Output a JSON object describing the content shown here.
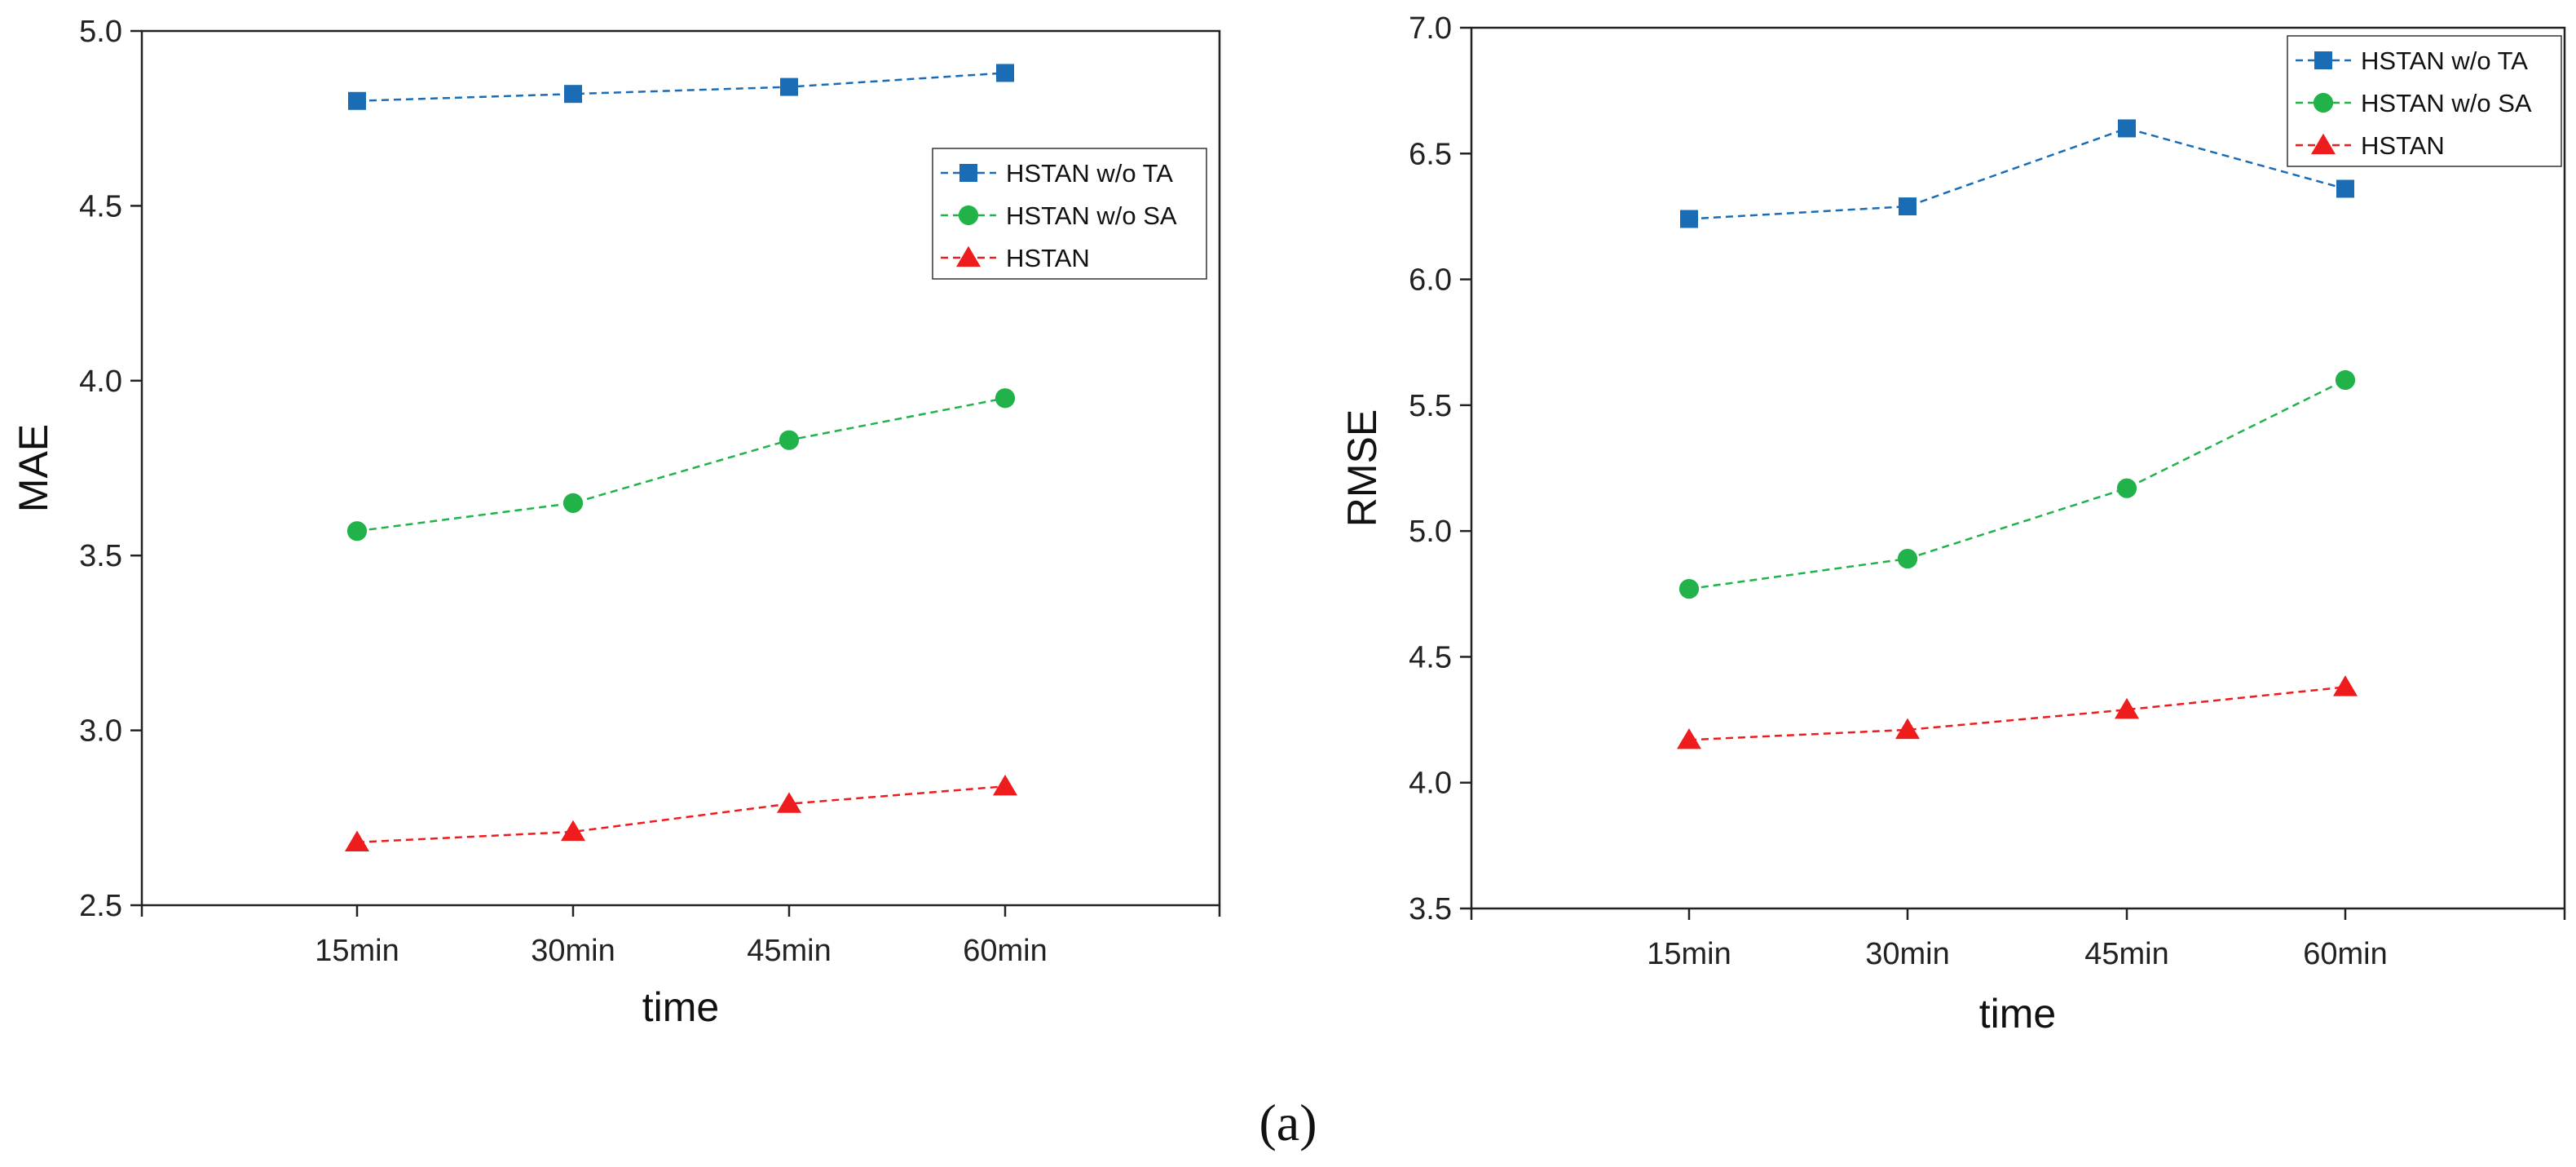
{
  "caption": "(a)",
  "chart_data": [
    {
      "type": "line",
      "title": "",
      "xlabel": "time",
      "ylabel": "MAE",
      "categories": [
        "15min",
        "30min",
        "45min",
        "60min"
      ],
      "ylim": [
        2.5,
        5.0
      ],
      "yticks": [
        2.5,
        3.0,
        3.5,
        4.0,
        4.5,
        5.0
      ],
      "ytick_labels": [
        "2.5",
        "3.0",
        "3.5",
        "4.0",
        "4.5",
        "5.0"
      ],
      "legend_position": "upper-right, below top",
      "series": [
        {
          "name": "HSTAN w/o TA",
          "values": [
            4.8,
            4.82,
            4.84,
            4.88
          ],
          "color": "#1a6db5",
          "marker": "square",
          "line": "dashed"
        },
        {
          "name": "HSTAN w/o SA",
          "values": [
            3.57,
            3.65,
            3.83,
            3.95
          ],
          "color": "#21b34a",
          "marker": "circle",
          "line": "dashed"
        },
        {
          "name": "HSTAN",
          "values": [
            2.68,
            2.71,
            2.79,
            2.84
          ],
          "color": "#ee1c1c",
          "marker": "triangle",
          "line": "dashed"
        }
      ]
    },
    {
      "type": "line",
      "title": "",
      "xlabel": "time",
      "ylabel": "RMSE",
      "categories": [
        "15min",
        "30min",
        "45min",
        "60min"
      ],
      "ylim": [
        3.5,
        7.0
      ],
      "yticks": [
        3.5,
        4.0,
        4.5,
        5.0,
        5.5,
        6.0,
        6.5,
        7.0
      ],
      "ytick_labels": [
        "3.5",
        "4.0",
        "4.5",
        "5.0",
        "5.5",
        "6.0",
        "6.5",
        "7.0"
      ],
      "legend_position": "top-right",
      "series": [
        {
          "name": "HSTAN w/o TA",
          "values": [
            6.24,
            6.29,
            6.6,
            6.36
          ],
          "color": "#1a6db5",
          "marker": "square",
          "line": "dashed"
        },
        {
          "name": "HSTAN w/o SA",
          "values": [
            4.77,
            4.89,
            5.17,
            5.6
          ],
          "color": "#21b34a",
          "marker": "circle",
          "line": "dashed"
        },
        {
          "name": "HSTAN",
          "values": [
            4.17,
            4.21,
            4.29,
            4.38
          ],
          "color": "#ee1c1c",
          "marker": "triangle",
          "line": "dashed"
        }
      ]
    }
  ]
}
